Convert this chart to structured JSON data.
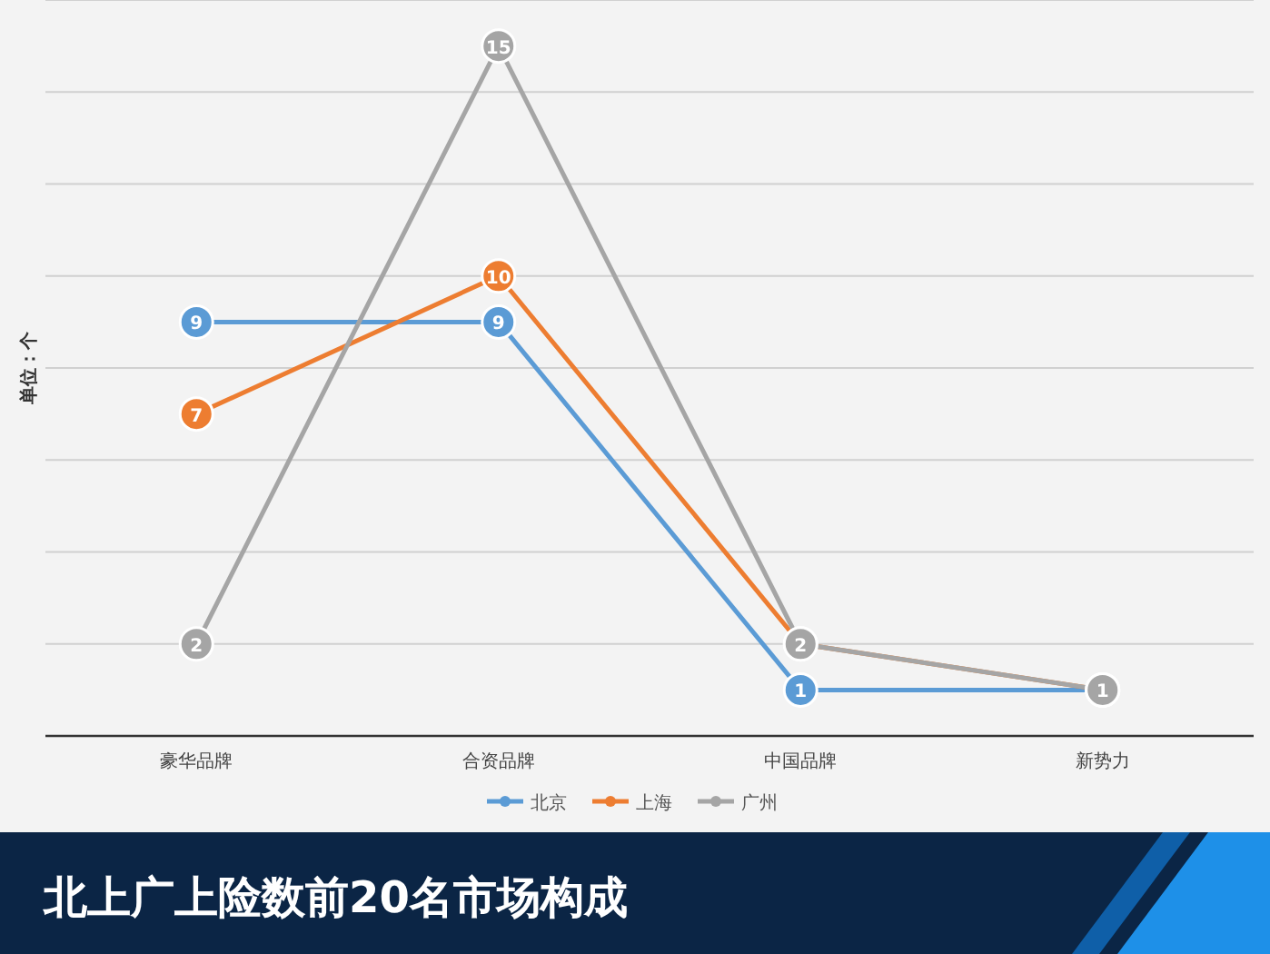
{
  "chart_data": {
    "type": "line",
    "title": "北上广上险数前20名市场构成",
    "ylabel": "单位：个",
    "categories": [
      "豪华品牌",
      "合资品牌",
      "中国品牌",
      "新势力"
    ],
    "series": [
      {
        "name": "北京",
        "color": "#5b9bd5",
        "values": [
          9,
          9,
          1,
          1
        ],
        "value_labels": [
          "9",
          "9",
          "1",
          null
        ]
      },
      {
        "name": "上海",
        "color": "#ed7d31",
        "values": [
          7,
          10,
          2,
          1
        ],
        "value_labels": [
          "7",
          "10",
          null,
          null
        ]
      },
      {
        "name": "广州",
        "color": "#a5a5a5",
        "values": [
          2,
          15,
          2,
          1
        ],
        "value_labels": [
          "2",
          "15",
          "2",
          "1"
        ]
      }
    ],
    "ylim": [
      0,
      16
    ],
    "yticks": [
      {
        "value": 0,
        "label": null
      },
      {
        "value": 2,
        "label": null
      },
      {
        "value": 4,
        "label": null
      },
      {
        "value": 6,
        "label": null
      },
      {
        "value": 8,
        "label": null
      },
      {
        "value": 10,
        "label": null
      },
      {
        "value": 12,
        "label": null
      },
      {
        "value": 14,
        "label": null
      },
      {
        "value": 16,
        "label": null
      }
    ],
    "grid": "y",
    "legend": "bottom",
    "marker": "circle",
    "line_style": "solid"
  }
}
